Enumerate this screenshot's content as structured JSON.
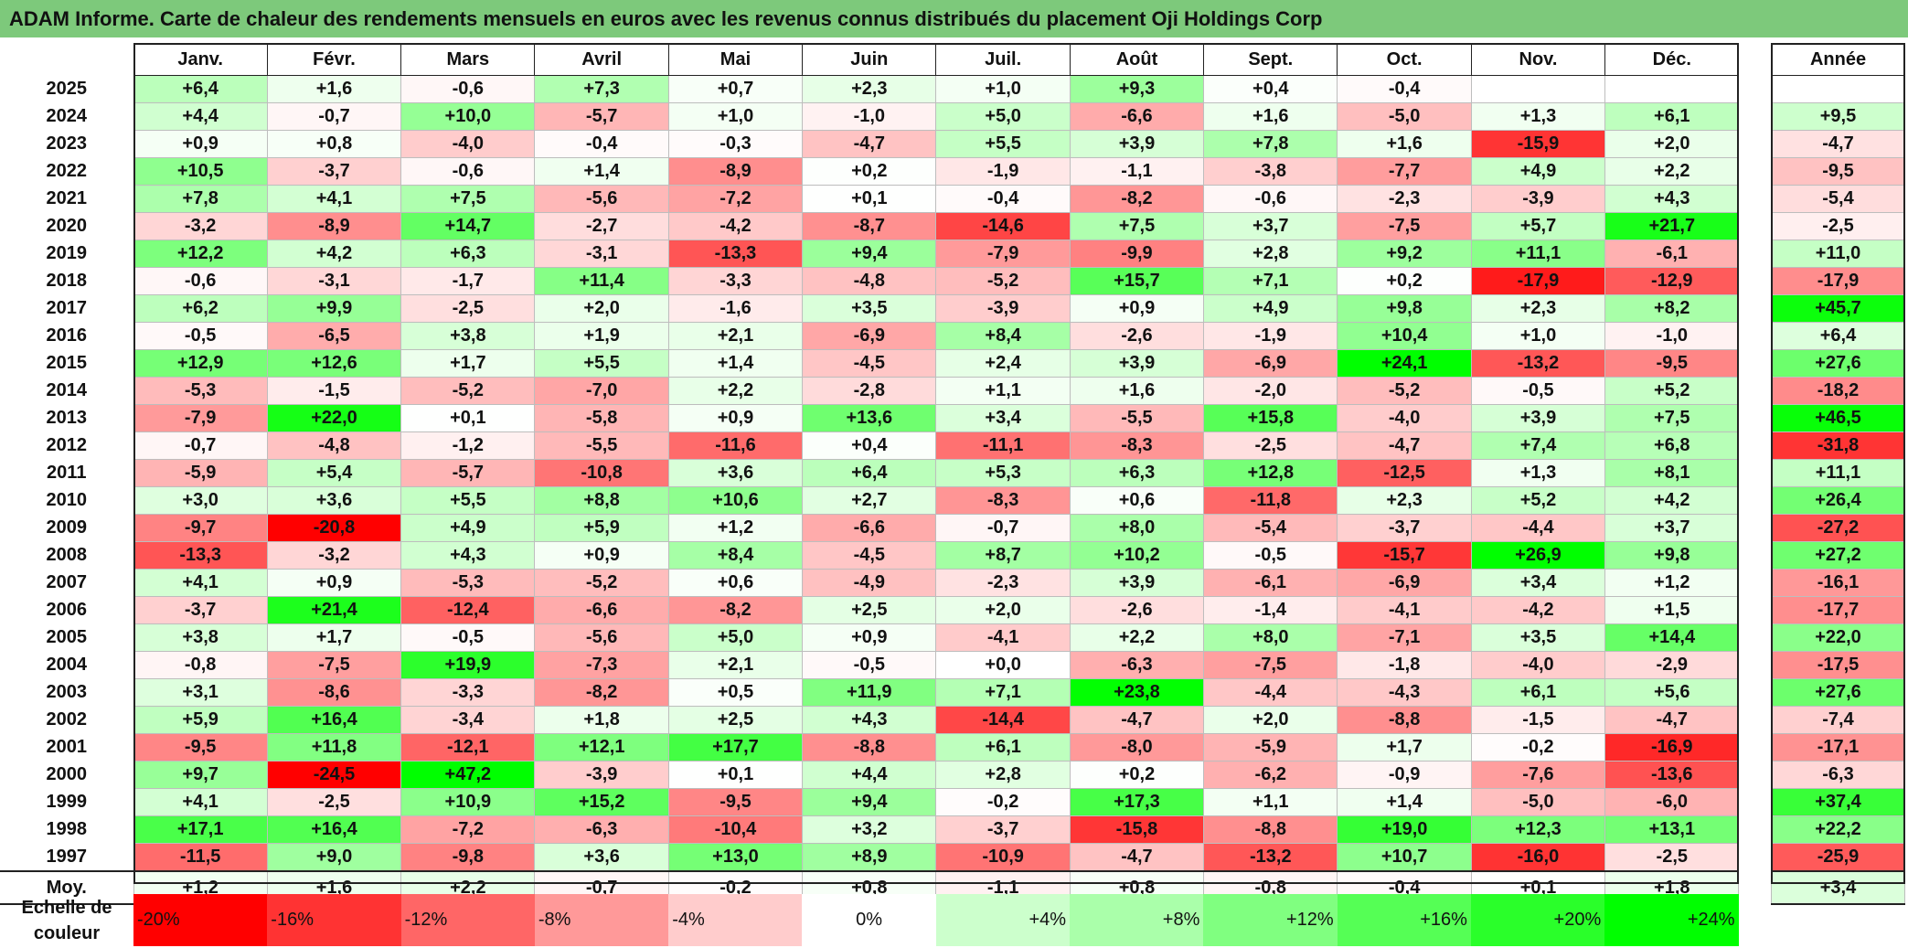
{
  "title": "ADAM Informe. Carte de chaleur des rendements mensuels en euros avec les revenus connus distribués du placement Oji Holdings Corp",
  "chart_data": {
    "type": "heatmap",
    "title": "ADAM Informe. Carte de chaleur des rendements mensuels en euros avec les revenus connus distribués du placement Oji Holdings Corp",
    "columns": [
      "Janv.",
      "Févr.",
      "Mars",
      "Avril",
      "Mai",
      "Juin",
      "Juil.",
      "Août",
      "Sept.",
      "Oct.",
      "Nov.",
      "Déc."
    ],
    "annual_header": "Année",
    "rows": [
      {
        "year": "2025",
        "values": [
          "+6,4",
          "+1,6",
          "-0,6",
          "+7,3",
          "+0,7",
          "+2,3",
          "+1,0",
          "+9,3",
          "+0,4",
          "-0,4",
          "",
          ""
        ],
        "annual": ""
      },
      {
        "year": "2024",
        "values": [
          "+4,4",
          "-0,7",
          "+10,0",
          "-5,7",
          "+1,0",
          "-1,0",
          "+5,0",
          "-6,6",
          "+1,6",
          "-5,0",
          "+1,3",
          "+6,1"
        ],
        "annual": "+9,5"
      },
      {
        "year": "2023",
        "values": [
          "+0,9",
          "+0,8",
          "-4,0",
          "-0,4",
          "-0,3",
          "-4,7",
          "+5,5",
          "+3,9",
          "+7,8",
          "+1,6",
          "-15,9",
          "+2,0"
        ],
        "annual": "-4,7"
      },
      {
        "year": "2022",
        "values": [
          "+10,5",
          "-3,7",
          "-0,6",
          "+1,4",
          "-8,9",
          "+0,2",
          "-1,9",
          "-1,1",
          "-3,8",
          "-7,7",
          "+4,9",
          "+2,2"
        ],
        "annual": "-9,5"
      },
      {
        "year": "2021",
        "values": [
          "+7,8",
          "+4,1",
          "+7,5",
          "-5,6",
          "-7,2",
          "+0,1",
          "-0,4",
          "-8,2",
          "-0,6",
          "-2,3",
          "-3,9",
          "+4,3"
        ],
        "annual": "-5,4"
      },
      {
        "year": "2020",
        "values": [
          "-3,2",
          "-8,9",
          "+14,7",
          "-2,7",
          "-4,2",
          "-8,7",
          "-14,6",
          "+7,5",
          "+3,7",
          "-7,5",
          "+5,7",
          "+21,7"
        ],
        "annual": "-2,5"
      },
      {
        "year": "2019",
        "values": [
          "+12,2",
          "+4,2",
          "+6,3",
          "-3,1",
          "-13,3",
          "+9,4",
          "-7,9",
          "-9,9",
          "+2,8",
          "+9,2",
          "+11,1",
          "-6,1"
        ],
        "annual": "+11,0"
      },
      {
        "year": "2018",
        "values": [
          "-0,6",
          "-3,1",
          "-1,7",
          "+11,4",
          "-3,3",
          "-4,8",
          "-5,2",
          "+15,7",
          "+7,1",
          "+0,2",
          "-17,9",
          "-12,9"
        ],
        "annual": "-17,9"
      },
      {
        "year": "2017",
        "values": [
          "+6,2",
          "+9,9",
          "-2,5",
          "+2,0",
          "-1,6",
          "+3,5",
          "-3,9",
          "+0,9",
          "+4,9",
          "+9,8",
          "+2,3",
          "+8,2"
        ],
        "annual": "+45,7"
      },
      {
        "year": "2016",
        "values": [
          "-0,5",
          "-6,5",
          "+3,8",
          "+1,9",
          "+2,1",
          "-6,9",
          "+8,4",
          "-2,6",
          "-1,9",
          "+10,4",
          "+1,0",
          "-1,0"
        ],
        "annual": "+6,4"
      },
      {
        "year": "2015",
        "values": [
          "+12,9",
          "+12,6",
          "+1,7",
          "+5,5",
          "+1,4",
          "-4,5",
          "+2,4",
          "+3,9",
          "-6,9",
          "+24,1",
          "-13,2",
          "-9,5"
        ],
        "annual": "+27,6"
      },
      {
        "year": "2014",
        "values": [
          "-5,3",
          "-1,5",
          "-5,2",
          "-7,0",
          "+2,2",
          "-2,8",
          "+1,1",
          "+1,6",
          "-2,0",
          "-5,2",
          "-0,5",
          "+5,2"
        ],
        "annual": "-18,2"
      },
      {
        "year": "2013",
        "values": [
          "-7,9",
          "+22,0",
          "+0,1",
          "-5,8",
          "+0,9",
          "+13,6",
          "+3,4",
          "-5,5",
          "+15,8",
          "-4,0",
          "+3,9",
          "+7,5"
        ],
        "annual": "+46,5"
      },
      {
        "year": "2012",
        "values": [
          "-0,7",
          "-4,8",
          "-1,2",
          "-5,5",
          "-11,6",
          "+0,4",
          "-11,1",
          "-8,3",
          "-2,5",
          "-4,7",
          "+7,4",
          "+6,8"
        ],
        "annual": "-31,8"
      },
      {
        "year": "2011",
        "values": [
          "-5,9",
          "+5,4",
          "-5,7",
          "-10,8",
          "+3,6",
          "+6,4",
          "+5,3",
          "+6,3",
          "+12,8",
          "-12,5",
          "+1,3",
          "+8,1"
        ],
        "annual": "+11,1"
      },
      {
        "year": "2010",
        "values": [
          "+3,0",
          "+3,6",
          "+5,5",
          "+8,8",
          "+10,6",
          "+2,7",
          "-8,3",
          "+0,6",
          "-11,8",
          "+2,3",
          "+5,2",
          "+4,2"
        ],
        "annual": "+26,4"
      },
      {
        "year": "2009",
        "values": [
          "-9,7",
          "-20,8",
          "+4,9",
          "+5,9",
          "+1,2",
          "-6,6",
          "-0,7",
          "+8,0",
          "-5,4",
          "-3,7",
          "-4,4",
          "+3,7"
        ],
        "annual": "-27,2"
      },
      {
        "year": "2008",
        "values": [
          "-13,3",
          "-3,2",
          "+4,3",
          "+0,9",
          "+8,4",
          "-4,5",
          "+8,7",
          "+10,2",
          "-0,5",
          "-15,7",
          "+26,9",
          "+9,8"
        ],
        "annual": "+27,2"
      },
      {
        "year": "2007",
        "values": [
          "+4,1",
          "+0,9",
          "-5,3",
          "-5,2",
          "+0,6",
          "-4,9",
          "-2,3",
          "+3,9",
          "-6,1",
          "-6,9",
          "+3,4",
          "+1,2"
        ],
        "annual": "-16,1"
      },
      {
        "year": "2006",
        "values": [
          "-3,7",
          "+21,4",
          "-12,4",
          "-6,6",
          "-8,2",
          "+2,5",
          "+2,0",
          "-2,6",
          "-1,4",
          "-4,1",
          "-4,2",
          "+1,5"
        ],
        "annual": "-17,7"
      },
      {
        "year": "2005",
        "values": [
          "+3,8",
          "+1,7",
          "-0,5",
          "-5,6",
          "+5,0",
          "+0,9",
          "-4,1",
          "+2,2",
          "+8,0",
          "-7,1",
          "+3,5",
          "+14,4"
        ],
        "annual": "+22,0"
      },
      {
        "year": "2004",
        "values": [
          "-0,8",
          "-7,5",
          "+19,9",
          "-7,3",
          "+2,1",
          "-0,5",
          "+0,0",
          "-6,3",
          "-7,5",
          "-1,8",
          "-4,0",
          "-2,9"
        ],
        "annual": "-17,5"
      },
      {
        "year": "2003",
        "values": [
          "+3,1",
          "-8,6",
          "-3,3",
          "-8,2",
          "+0,5",
          "+11,9",
          "+7,1",
          "+23,8",
          "-4,4",
          "-4,3",
          "+6,1",
          "+5,6"
        ],
        "annual": "+27,6"
      },
      {
        "year": "2002",
        "values": [
          "+5,9",
          "+16,4",
          "-3,4",
          "+1,8",
          "+2,5",
          "+4,3",
          "-14,4",
          "-4,7",
          "+2,0",
          "-8,8",
          "-1,5",
          "-4,7"
        ],
        "annual": "-7,4"
      },
      {
        "year": "2001",
        "values": [
          "-9,5",
          "+11,8",
          "-12,1",
          "+12,1",
          "+17,7",
          "-8,8",
          "+6,1",
          "-8,0",
          "-5,9",
          "+1,7",
          "-0,2",
          "-16,9"
        ],
        "annual": "-17,1"
      },
      {
        "year": "2000",
        "values": [
          "+9,7",
          "-24,5",
          "+47,2",
          "-3,9",
          "+0,1",
          "+4,4",
          "+2,8",
          "+0,2",
          "-6,2",
          "-0,9",
          "-7,6",
          "-13,6"
        ],
        "annual": "-6,3"
      },
      {
        "year": "1999",
        "values": [
          "+4,1",
          "-2,5",
          "+10,9",
          "+15,2",
          "-9,5",
          "+9,4",
          "-0,2",
          "+17,3",
          "+1,1",
          "+1,4",
          "-5,0",
          "-6,0"
        ],
        "annual": "+37,4"
      },
      {
        "year": "1998",
        "values": [
          "+17,1",
          "+16,4",
          "-7,2",
          "-6,3",
          "-10,4",
          "+3,2",
          "-3,7",
          "-15,8",
          "-8,8",
          "+19,0",
          "+12,3",
          "+13,1"
        ],
        "annual": "+22,2"
      },
      {
        "year": "1997",
        "values": [
          "-11,5",
          "+9,0",
          "-9,8",
          "+3,6",
          "+13,0",
          "+8,9",
          "-10,9",
          "-4,7",
          "-13,2",
          "+10,7",
          "-16,0",
          "-2,5"
        ],
        "annual": "-25,9"
      }
    ],
    "average": {
      "label": "Moy.",
      "values": [
        "+1,2",
        "+1,6",
        "+2,2",
        "-0,7",
        "-0,2",
        "+0,8",
        "-1,1",
        "+0,8",
        "-0,8",
        "-0,4",
        "+0,1",
        "+1,8"
      ],
      "annual": "+3,4"
    },
    "color_scale": {
      "label": "Echelle de couleur",
      "stops": [
        {
          "label": "-20%",
          "color": "#ff0000"
        },
        {
          "label": "-16%",
          "color": "#ff3333"
        },
        {
          "label": "-12%",
          "color": "#ff6666"
        },
        {
          "label": "-8%",
          "color": "#ff9999"
        },
        {
          "label": "-4%",
          "color": "#ffcccc"
        },
        {
          "label": "0%",
          "color": "#ffffff"
        },
        {
          "label": "+4%",
          "color": "#ccffcc"
        },
        {
          "label": "+8%",
          "color": "#aaffaa"
        },
        {
          "label": "+12%",
          "color": "#80ff80"
        },
        {
          "label": "+16%",
          "color": "#55ff55"
        },
        {
          "label": "+20%",
          "color": "#2aff2a"
        },
        {
          "label": "+24%",
          "color": "#00ff00"
        }
      ]
    }
  }
}
